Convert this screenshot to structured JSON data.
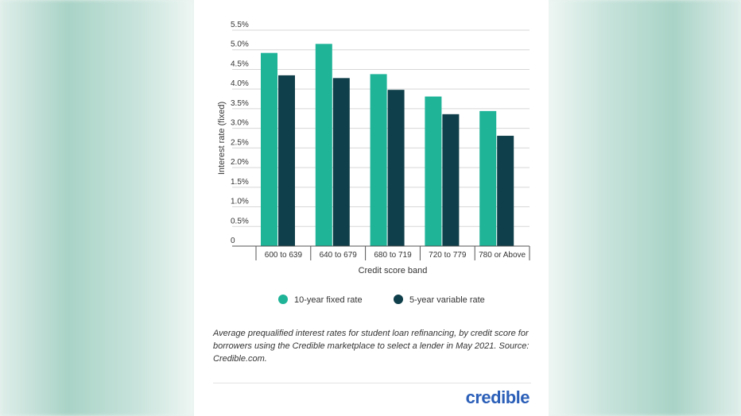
{
  "chart_data": {
    "type": "bar",
    "categories": [
      "600 to 639",
      "640 to 679",
      "680 to 719",
      "720 to 779",
      "780 or Above"
    ],
    "series": [
      {
        "name": "10-year fixed rate",
        "color": "#1fb398",
        "values": [
          4.92,
          5.15,
          4.38,
          3.81,
          3.44
        ]
      },
      {
        "name": "5-year variable rate",
        "color": "#0f3f4a",
        "values": [
          4.35,
          4.28,
          3.98,
          3.36,
          2.81
        ]
      }
    ],
    "xlabel": "Credit score band",
    "ylabel": "Interest rate (fixed)",
    "ylim": [
      0,
      5.5
    ],
    "yticks": [
      {
        "value": 0,
        "label": "0"
      },
      {
        "value": 0.5,
        "label": "0.5%"
      },
      {
        "value": 1.0,
        "label": "1.0%"
      },
      {
        "value": 1.5,
        "label": "1.5%"
      },
      {
        "value": 2.0,
        "label": "2.0%"
      },
      {
        "value": 2.5,
        "label": "2.5%"
      },
      {
        "value": 3.0,
        "label": "3.0%"
      },
      {
        "value": 3.5,
        "label": "3.5%"
      },
      {
        "value": 4.0,
        "label": "4.0%"
      },
      {
        "value": 4.5,
        "label": "4.5%"
      },
      {
        "value": 5.0,
        "label": "5.0%"
      },
      {
        "value": 5.5,
        "label": "5.5%"
      }
    ],
    "grid": true,
    "legend_position": "bottom"
  },
  "caption": "Average prequalified interest rates for student loan refinancing, by credit score for borrowers using the Credible marketplace to select a lender in May 2021. Source: Credible.com.",
  "brand": "credible"
}
